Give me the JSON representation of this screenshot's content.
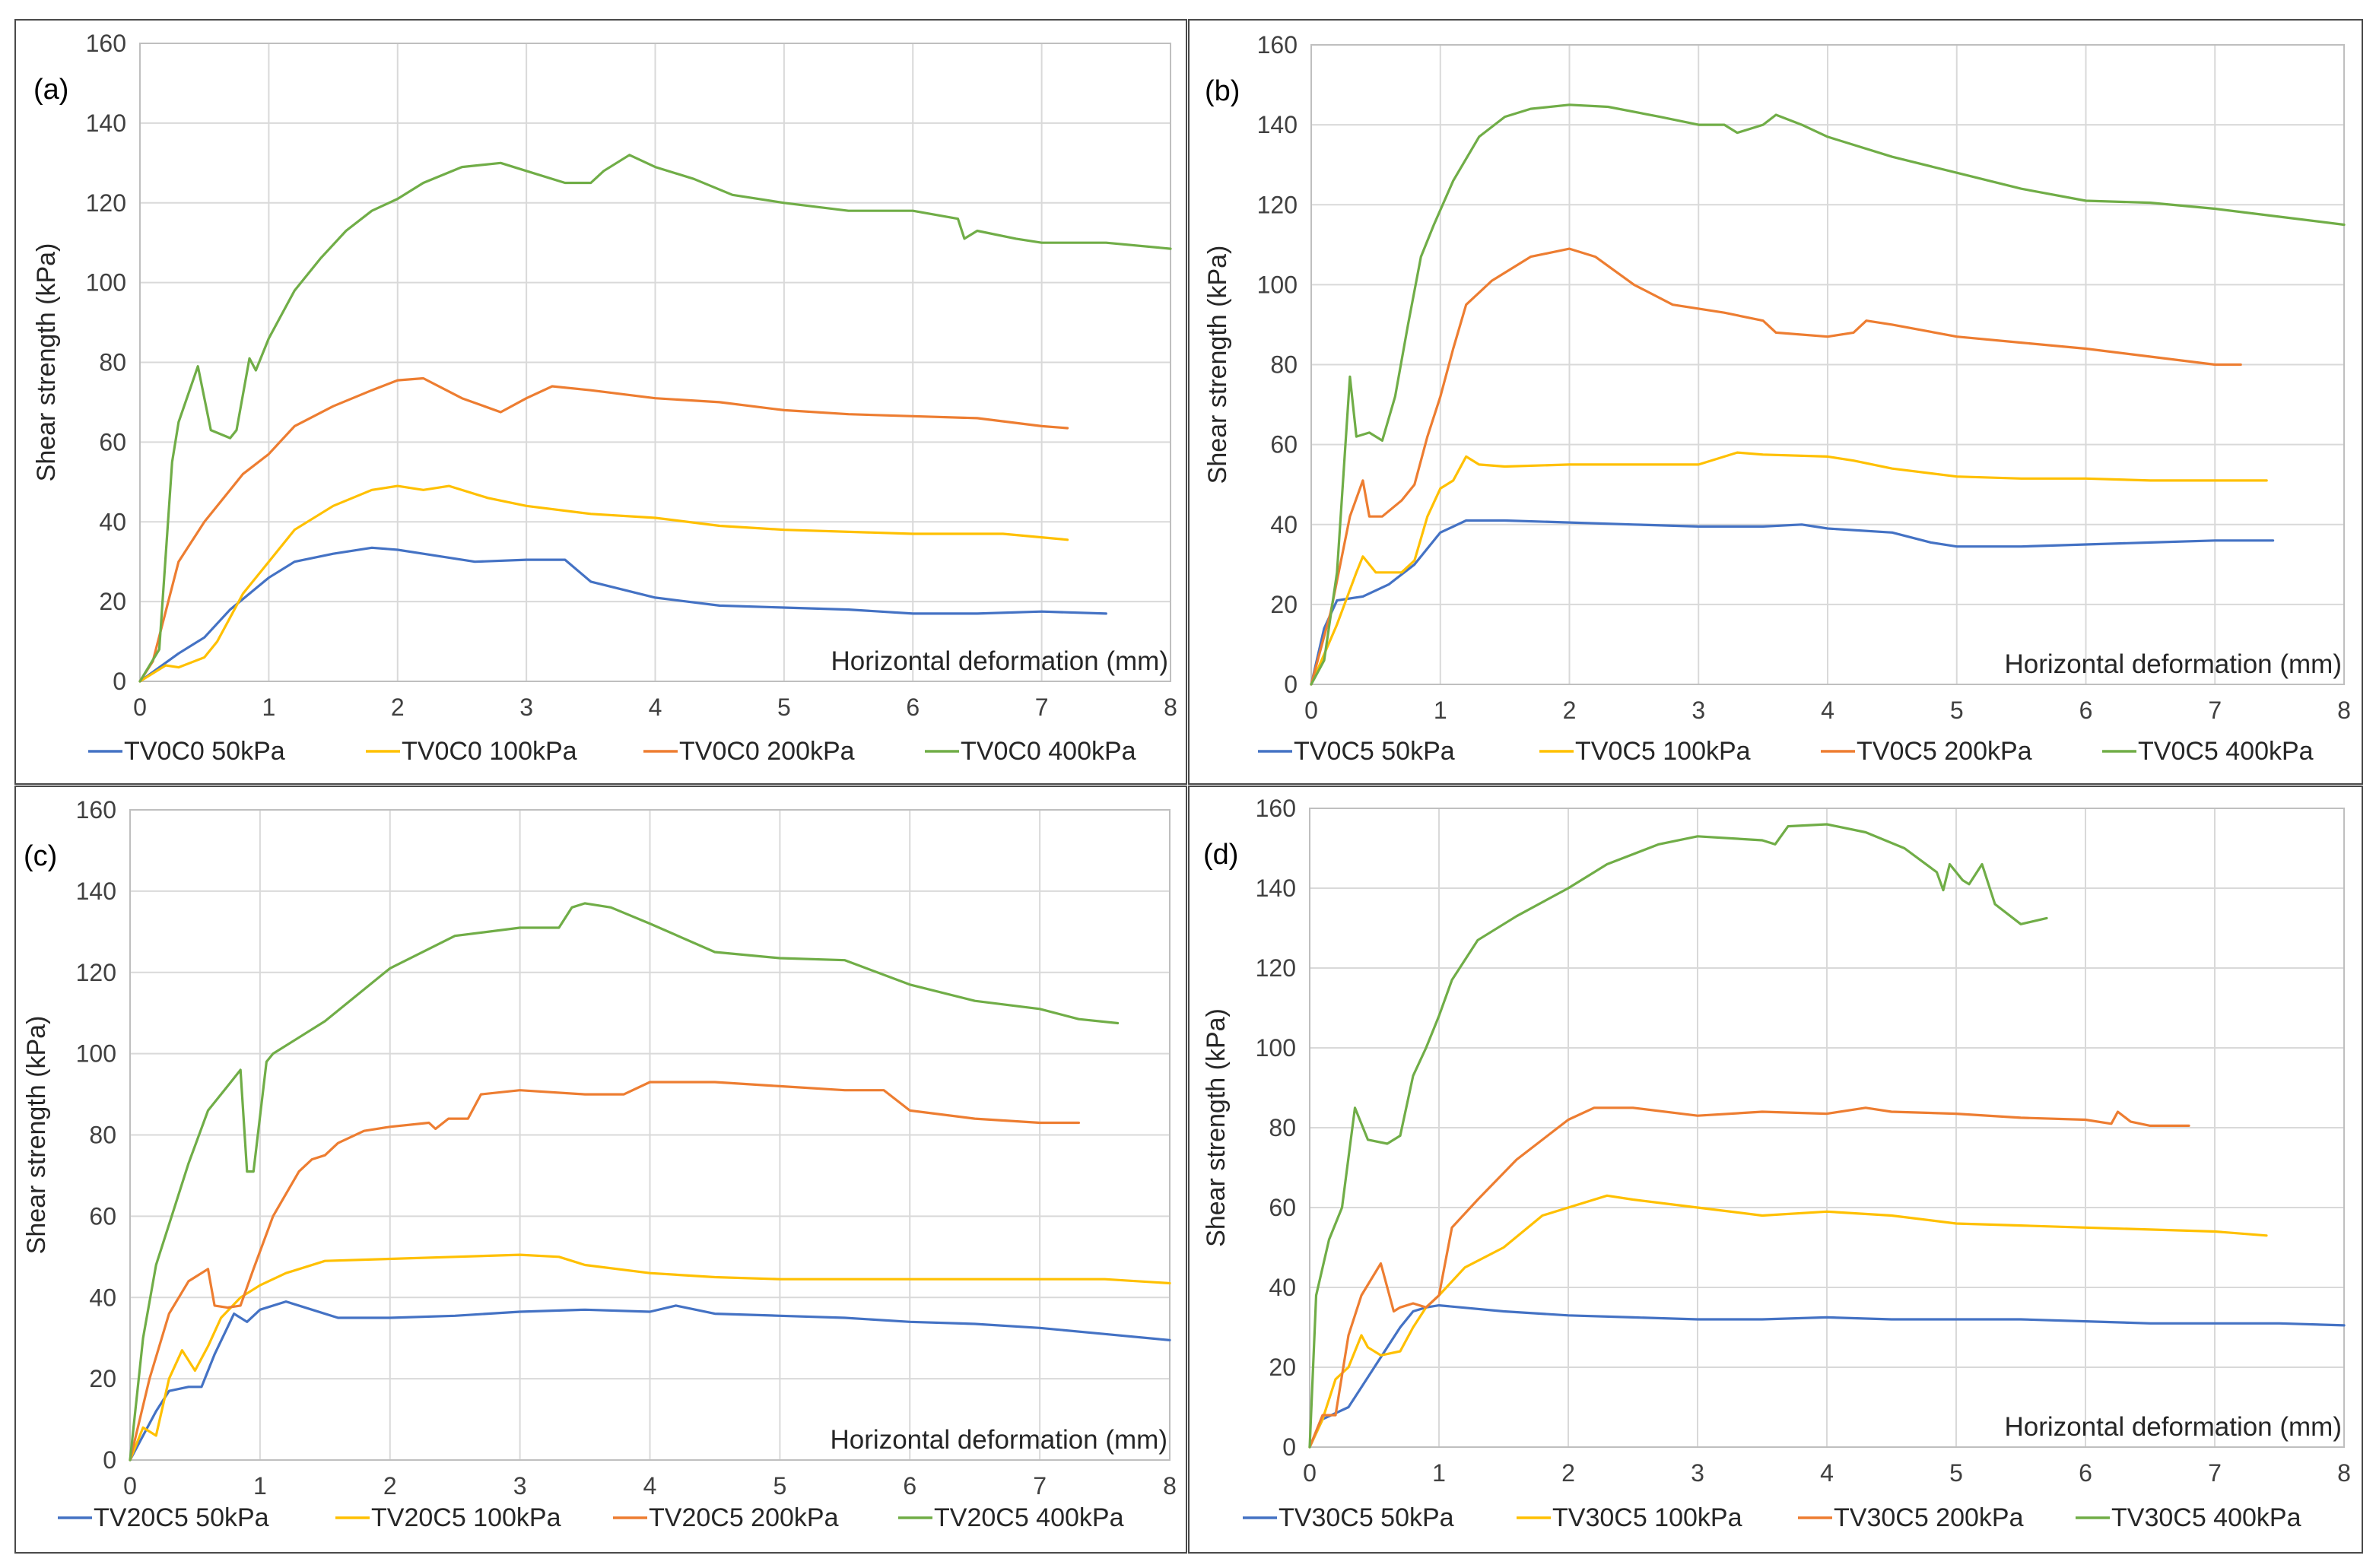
{
  "chart_data": [
    {
      "type": "line",
      "panel_label": "(a)",
      "xlabel": "Horizontal deformation (mm)",
      "ylabel": "Shear strength (kPa)",
      "xlim": [
        0,
        8
      ],
      "ylim": [
        0,
        160
      ],
      "xticks": [
        "0",
        "1",
        "2",
        "3",
        "4",
        "5",
        "6",
        "7",
        "8"
      ],
      "yticks": [
        "0",
        "20",
        "40",
        "60",
        "80",
        "100",
        "120",
        "140",
        "160"
      ],
      "series": [
        {
          "name": "TV0C0 50kPa",
          "color": "#4472C4",
          "x": [
            0,
            0.3,
            0.5,
            0.7,
            1.0,
            1.2,
            1.5,
            1.8,
            2.0,
            2.2,
            2.6,
            3.0,
            3.3,
            3.5,
            4.0,
            4.5,
            5.0,
            5.5,
            6.0,
            6.5,
            7.0,
            7.5
          ],
          "y": [
            0,
            7,
            11,
            18,
            26,
            30,
            32,
            33.5,
            33,
            32,
            30,
            30.5,
            30.5,
            25,
            21,
            19,
            18.5,
            18,
            17,
            17,
            17.5,
            17
          ]
        },
        {
          "name": "TV0C0 100kPa",
          "color": "#FFC000",
          "x": [
            0,
            0.2,
            0.3,
            0.5,
            0.6,
            0.8,
            1.0,
            1.2,
            1.5,
            1.8,
            2.0,
            2.2,
            2.4,
            2.7,
            3.0,
            3.5,
            4.0,
            4.5,
            5.0,
            6.0,
            6.7,
            7.2
          ],
          "y": [
            0,
            4,
            3.5,
            6,
            10,
            22,
            30,
            38,
            44,
            48,
            49,
            48,
            49,
            46,
            44,
            42,
            41,
            39,
            38,
            37,
            37,
            35.5
          ]
        },
        {
          "name": "TV0C0 200kPa",
          "color": "#ED7D31",
          "x": [
            0,
            0.1,
            0.3,
            0.5,
            0.8,
            1.0,
            1.2,
            1.5,
            1.8,
            2.0,
            2.2,
            2.5,
            2.8,
            3.0,
            3.2,
            3.5,
            4.0,
            4.5,
            5.0,
            5.5,
            6.0,
            6.5,
            7.0,
            7.2
          ],
          "y": [
            0,
            5,
            30,
            40,
            52,
            57,
            64,
            69,
            73,
            75.5,
            76,
            71,
            67.5,
            71,
            74,
            73,
            71,
            70,
            68,
            67,
            66.5,
            66,
            64,
            63.5
          ]
        },
        {
          "name": "TV0C0 400kPa",
          "color": "#70AD47",
          "x": [
            0,
            0.15,
            0.25,
            0.3,
            0.45,
            0.55,
            0.7,
            0.75,
            0.85,
            0.9,
            1.0,
            1.2,
            1.4,
            1.6,
            1.8,
            2.0,
            2.2,
            2.5,
            2.8,
            3.0,
            3.3,
            3.5,
            3.6,
            3.8,
            4.0,
            4.3,
            4.6,
            5.0,
            5.5,
            6.0,
            6.35,
            6.4,
            6.5,
            6.8,
            7.0,
            7.5,
            8.0
          ],
          "y": [
            0,
            8,
            55,
            65,
            79,
            63,
            61,
            63,
            81,
            78,
            86,
            98,
            106,
            113,
            118,
            121,
            125,
            129,
            130,
            128,
            125,
            125,
            128,
            132,
            129,
            126,
            122,
            120,
            118,
            118,
            116,
            111,
            113,
            111,
            110,
            110,
            108.5
          ]
        }
      ]
    },
    {
      "type": "line",
      "panel_label": "(b)",
      "xlabel": "Horizontal deformation (mm)",
      "ylabel": "Shear strength (kPa)",
      "xlim": [
        0,
        8
      ],
      "ylim": [
        0,
        160
      ],
      "xticks": [
        "0",
        "1",
        "2",
        "3",
        "4",
        "5",
        "6",
        "7",
        "8"
      ],
      "yticks": [
        "0",
        "20",
        "40",
        "60",
        "80",
        "100",
        "120",
        "140",
        "160"
      ],
      "series": [
        {
          "name": "TV0C5 50kPa",
          "color": "#4472C4",
          "x": [
            0,
            0.1,
            0.2,
            0.4,
            0.6,
            0.8,
            1.0,
            1.2,
            1.5,
            2.0,
            2.5,
            3.0,
            3.5,
            3.8,
            4.0,
            4.5,
            4.8,
            5.0,
            5.5,
            6.0,
            6.5,
            7.0,
            7.45
          ],
          "y": [
            0,
            14,
            21,
            22,
            25,
            30,
            38,
            41,
            41,
            40.5,
            40,
            39.5,
            39.5,
            40,
            39,
            38,
            35.5,
            34.5,
            34.5,
            35,
            35.5,
            36,
            36
          ]
        },
        {
          "name": "TV0C5 100kPa",
          "color": "#FFC000",
          "x": [
            0,
            0.2,
            0.35,
            0.4,
            0.5,
            0.7,
            0.8,
            0.9,
            1.0,
            1.1,
            1.2,
            1.3,
            1.5,
            2.0,
            2.5,
            3.0,
            3.3,
            3.5,
            4.0,
            4.2,
            4.5,
            5.0,
            5.5,
            6.0,
            6.5,
            7.0,
            7.4
          ],
          "y": [
            0,
            15,
            28,
            32,
            28,
            28,
            31,
            42,
            49,
            51,
            57,
            55,
            54.5,
            55,
            55,
            55,
            58,
            57.5,
            57,
            56,
            54,
            52,
            51.5,
            51.5,
            51,
            51,
            51
          ]
        },
        {
          "name": "TV0C5 200kPa",
          "color": "#ED7D31",
          "x": [
            0,
            0.15,
            0.3,
            0.4,
            0.45,
            0.55,
            0.7,
            0.8,
            0.9,
            1.0,
            1.1,
            1.2,
            1.4,
            1.7,
            2.0,
            2.2,
            2.5,
            2.8,
            3.2,
            3.5,
            3.6,
            4.0,
            4.2,
            4.3,
            4.5,
            5.0,
            5.5,
            6.0,
            6.5,
            7.0,
            7.2
          ],
          "y": [
            0,
            18,
            42,
            51,
            42,
            42,
            46,
            50,
            62,
            72,
            84,
            95,
            101,
            107,
            109,
            107,
            100,
            95,
            93,
            91,
            88,
            87,
            88,
            91,
            90,
            87,
            85.5,
            84,
            82,
            80,
            80
          ]
        },
        {
          "name": "TV0C5 400kPa",
          "color": "#70AD47",
          "x": [
            0,
            0.1,
            0.2,
            0.3,
            0.35,
            0.45,
            0.55,
            0.65,
            0.75,
            0.85,
            0.95,
            1.1,
            1.3,
            1.5,
            1.7,
            2.0,
            2.3,
            2.7,
            3.0,
            3.2,
            3.3,
            3.5,
            3.6,
            3.8,
            4.0,
            4.5,
            5.0,
            5.5,
            6.0,
            6.5,
            7.0,
            7.5,
            8.0
          ],
          "y": [
            0,
            6,
            28,
            77,
            62,
            63,
            61,
            72,
            90,
            107,
            115,
            126,
            137,
            142,
            144,
            145,
            144.5,
            142,
            140,
            140,
            138,
            140,
            142.5,
            140,
            137,
            132,
            128,
            124,
            121,
            120.5,
            119,
            117,
            115
          ]
        }
      ]
    },
    {
      "type": "line",
      "panel_label": "(c)",
      "xlabel": "Horizontal deformation (mm)",
      "ylabel": "Shear strength (kPa)",
      "xlim": [
        0,
        8
      ],
      "ylim": [
        0,
        160
      ],
      "xticks": [
        "0",
        "1",
        "2",
        "3",
        "4",
        "5",
        "6",
        "7",
        "8"
      ],
      "yticks": [
        "0",
        "20",
        "40",
        "60",
        "80",
        "100",
        "120",
        "140",
        "160"
      ],
      "series": [
        {
          "name": "TV20C5 50kPa",
          "color": "#4472C4",
          "x": [
            0,
            0.2,
            0.3,
            0.45,
            0.55,
            0.65,
            0.8,
            0.9,
            1.0,
            1.2,
            1.4,
            1.6,
            2.0,
            2.5,
            3.0,
            3.5,
            4.0,
            4.2,
            4.5,
            5.0,
            5.5,
            6.0,
            6.5,
            7.0,
            7.5,
            8.0
          ],
          "y": [
            0,
            12,
            17,
            18,
            18,
            26,
            36,
            34,
            37,
            39,
            37,
            35,
            35,
            35.5,
            36.5,
            37,
            36.5,
            38,
            36,
            35.5,
            35,
            34,
            33.5,
            32.5,
            31,
            29.5
          ]
        },
        {
          "name": "TV20C5 100kPa",
          "color": "#FFC000",
          "x": [
            0,
            0.1,
            0.2,
            0.3,
            0.4,
            0.5,
            0.6,
            0.7,
            0.85,
            1.0,
            1.2,
            1.5,
            2.0,
            2.5,
            3.0,
            3.3,
            3.5,
            4.0,
            4.5,
            5.0,
            5.5,
            6.0,
            6.5,
            7.0,
            7.5,
            8.0
          ],
          "y": [
            0,
            8,
            6,
            20,
            27,
            22,
            28,
            35,
            40,
            43,
            46,
            49,
            49.5,
            50,
            50.5,
            50,
            48,
            46,
            45,
            44.5,
            44.5,
            44.5,
            44.5,
            44.5,
            44.5,
            43.5
          ]
        },
        {
          "name": "TV20C5 200kPa",
          "color": "#ED7D31",
          "x": [
            0,
            0.15,
            0.3,
            0.45,
            0.6,
            0.65,
            0.75,
            0.85,
            0.95,
            1.1,
            1.3,
            1.4,
            1.5,
            1.6,
            1.8,
            2.0,
            2.3,
            2.35,
            2.45,
            2.6,
            2.7,
            3.0,
            3.5,
            3.8,
            4.0,
            4.5,
            5.0,
            5.5,
            5.8,
            6.0,
            6.5,
            7.0,
            7.3
          ],
          "y": [
            0,
            20,
            36,
            44,
            47,
            38,
            37.5,
            38,
            47,
            60,
            71,
            74,
            75,
            78,
            81,
            82,
            83,
            81.5,
            84,
            84,
            90,
            91,
            90,
            90,
            93,
            93,
            92,
            91,
            91,
            86,
            84,
            83,
            83
          ]
        },
        {
          "name": "TV20C5 400kPa",
          "color": "#70AD47",
          "x": [
            0,
            0.1,
            0.2,
            0.3,
            0.45,
            0.6,
            0.75,
            0.85,
            0.9,
            0.95,
            1.05,
            1.1,
            1.3,
            1.5,
            2.0,
            2.5,
            3.0,
            3.3,
            3.4,
            3.5,
            3.7,
            4.0,
            4.5,
            5.0,
            5.5,
            6.0,
            6.5,
            7.0,
            7.3,
            7.6
          ],
          "y": [
            0,
            30,
            48,
            58,
            73,
            86,
            92,
            96,
            71,
            71,
            98,
            100,
            104,
            108,
            121,
            129,
            131,
            131,
            136,
            137,
            136,
            132,
            125,
            123.5,
            123,
            117,
            113,
            111,
            108.5,
            107.5
          ]
        }
      ]
    },
    {
      "type": "line",
      "panel_label": "(d)",
      "xlabel": "Horizontal deformation (mm)",
      "ylabel": "Shear strength (kPa)",
      "xlim": [
        0,
        8
      ],
      "ylim": [
        0,
        160
      ],
      "xticks": [
        "0",
        "1",
        "2",
        "3",
        "4",
        "5",
        "6",
        "7",
        "8"
      ],
      "yticks": [
        "0",
        "20",
        "40",
        "60",
        "80",
        "100",
        "120",
        "140",
        "160"
      ],
      "series": [
        {
          "name": "TV30C5 50kPa",
          "color": "#4472C4",
          "x": [
            0,
            0.1,
            0.3,
            0.5,
            0.7,
            0.8,
            0.9,
            1.0,
            1.5,
            2.0,
            2.5,
            3.0,
            3.5,
            4.0,
            4.5,
            5.0,
            5.5,
            6.0,
            6.5,
            7.0,
            7.5,
            8.0
          ],
          "y": [
            0,
            7,
            10,
            20,
            30,
            34,
            35,
            35.5,
            34,
            33,
            32.5,
            32,
            32,
            32.5,
            32,
            32,
            32,
            31.5,
            31,
            31,
            31,
            30.5
          ]
        },
        {
          "name": "TV30C5 100kPa",
          "color": "#FFC000",
          "x": [
            0,
            0.1,
            0.2,
            0.3,
            0.4,
            0.45,
            0.55,
            0.7,
            0.8,
            0.9,
            1.0,
            1.2,
            1.5,
            1.8,
            2.0,
            2.3,
            2.5,
            3.0,
            3.5,
            4.0,
            4.5,
            5.0,
            5.5,
            6.0,
            6.5,
            7.0,
            7.4
          ],
          "y": [
            0,
            7,
            17,
            20,
            28,
            25,
            23,
            24,
            30,
            35,
            38,
            45,
            50,
            58,
            60,
            63,
            62,
            60,
            58,
            59,
            58,
            56,
            55.5,
            55,
            54.5,
            54,
            53
          ]
        },
        {
          "name": "TV30C5 200kPa",
          "color": "#ED7D31",
          "x": [
            0,
            0.1,
            0.2,
            0.3,
            0.4,
            0.55,
            0.65,
            0.7,
            0.8,
            0.9,
            1.0,
            1.1,
            1.3,
            1.6,
            2.0,
            2.2,
            2.5,
            3.0,
            3.5,
            4.0,
            4.3,
            4.5,
            5.0,
            5.5,
            6.0,
            6.2,
            6.25,
            6.35,
            6.5,
            6.8
          ],
          "y": [
            0,
            8,
            8,
            28,
            38,
            46,
            34,
            35,
            36,
            35,
            38,
            55,
            62,
            72,
            82,
            85,
            85,
            83,
            84,
            83.5,
            85,
            84,
            83.5,
            82.5,
            82,
            81,
            84,
            81.5,
            80.5,
            80.5
          ]
        },
        {
          "name": "TV30C5 400kPa",
          "color": "#70AD47",
          "x": [
            0,
            0.05,
            0.15,
            0.25,
            0.35,
            0.45,
            0.6,
            0.7,
            0.8,
            0.9,
            1.0,
            1.1,
            1.3,
            1.6,
            2.0,
            2.3,
            2.7,
            3.0,
            3.5,
            3.6,
            3.7,
            4.0,
            4.3,
            4.6,
            4.85,
            4.9,
            4.95,
            5.05,
            5.1,
            5.2,
            5.3,
            5.5,
            5.7
          ],
          "y": [
            0,
            38,
            52,
            60,
            85,
            77,
            76,
            78,
            93,
            100,
            108,
            117,
            127,
            133,
            140,
            146,
            151,
            153,
            152,
            151,
            155.5,
            156,
            154,
            150,
            144,
            139.5,
            146,
            142,
            141,
            146,
            136,
            131,
            132.5
          ]
        }
      ]
    }
  ]
}
